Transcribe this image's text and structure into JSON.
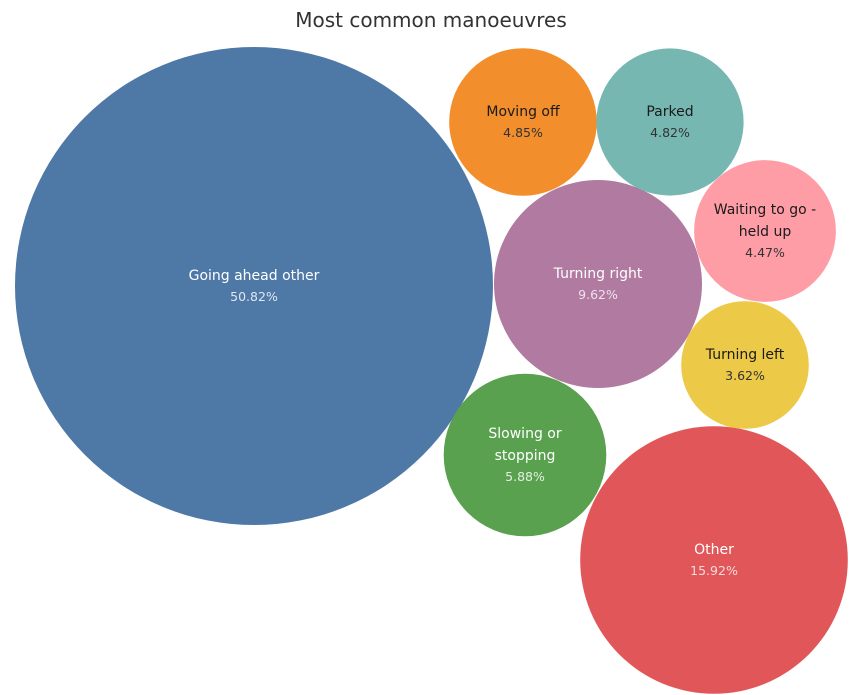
{
  "chart_data": {
    "type": "bubble",
    "title": "Most common manoeuvres",
    "series": [
      {
        "name": "Going ahead other",
        "label_lines": [
          "Going ahead other"
        ],
        "value": "50.82%",
        "percent": 50.82,
        "color": "#4e79a7",
        "label_color": "#ffffff",
        "value_color": "#dfe6ef"
      },
      {
        "name": "Other",
        "label_lines": [
          "Other"
        ],
        "value": "15.92%",
        "percent": 15.92,
        "color": "#e15759",
        "label_color": "#ffffff",
        "value_color": "#f6dada"
      },
      {
        "name": "Turning right",
        "label_lines": [
          "Turning right"
        ],
        "value": "9.62%",
        "percent": 9.62,
        "color": "#b07aa1",
        "label_color": "#ffffff",
        "value_color": "#efe2ec"
      },
      {
        "name": "Slowing or stopping",
        "label_lines": [
          "Slowing or",
          "stopping"
        ],
        "value": "5.88%",
        "percent": 5.88,
        "color": "#59a14f",
        "label_color": "#ffffff",
        "value_color": "#e2f0df"
      },
      {
        "name": "Moving off",
        "label_lines": [
          "Moving off"
        ],
        "value": "4.85%",
        "percent": 4.85,
        "color": "#f28e2b",
        "label_color": "#1a1a1a",
        "value_color": "#333333"
      },
      {
        "name": "Parked",
        "label_lines": [
          "Parked"
        ],
        "value": "4.82%",
        "percent": 4.82,
        "color": "#76b7b2",
        "label_color": "#1a1a1a",
        "value_color": "#333333"
      },
      {
        "name": "Waiting to go - held up",
        "label_lines": [
          "Waiting to go -",
          "held up"
        ],
        "value": "4.47%",
        "percent": 4.47,
        "color": "#ff9da7",
        "label_color": "#1a1a1a",
        "value_color": "#333333"
      },
      {
        "name": "Turning left",
        "label_lines": [
          "Turning left"
        ],
        "value": "3.62%",
        "percent": 3.62,
        "color": "#edc948",
        "label_color": "#1a1a1a",
        "value_color": "#333333"
      }
    ]
  }
}
